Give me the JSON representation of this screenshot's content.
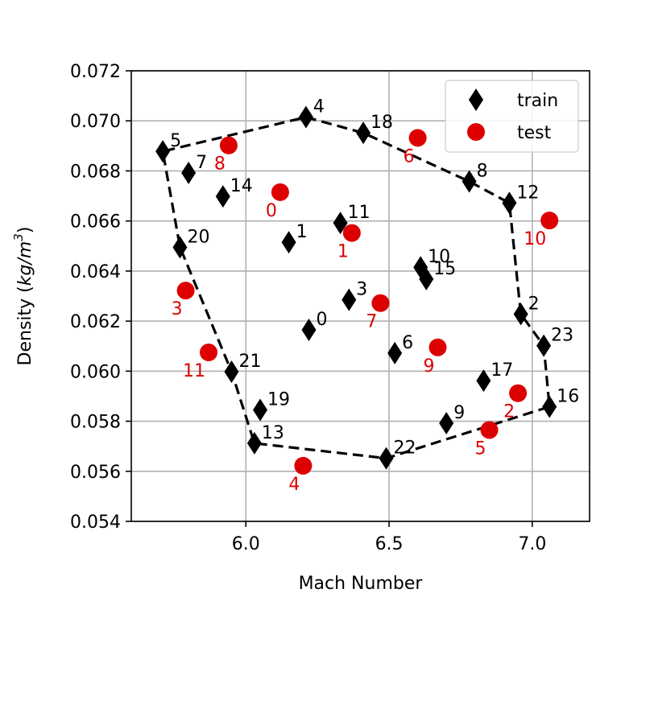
{
  "chart_data": {
    "type": "scatter",
    "xlabel": "Mach Number",
    "ylabel": "Density",
    "ylabel_unit": "kg/m",
    "ylabel_unit_exp": "3",
    "xlim": [
      5.6,
      7.2
    ],
    "ylim": [
      0.054,
      0.072
    ],
    "xticks": [
      6.0,
      6.5,
      7.0
    ],
    "xtick_labels": [
      "6.0",
      "6.5",
      "7.0"
    ],
    "yticks": [
      0.054,
      0.056,
      0.058,
      0.06,
      0.062,
      0.064,
      0.066,
      0.068,
      0.07,
      0.072
    ],
    "ytick_labels": [
      "0.054",
      "0.056",
      "0.058",
      "0.060",
      "0.062",
      "0.064",
      "0.066",
      "0.068",
      "0.070",
      "0.072"
    ],
    "grid": true,
    "legend_position": "top-right",
    "series": [
      {
        "name": "train",
        "marker": "diamond",
        "color": "#000000",
        "points": [
          {
            "label": "0",
            "x": 6.22,
            "y": 0.06165
          },
          {
            "label": "1",
            "x": 6.15,
            "y": 0.06515
          },
          {
            "label": "2",
            "x": 6.96,
            "y": 0.06228
          },
          {
            "label": "3",
            "x": 6.36,
            "y": 0.06285
          },
          {
            "label": "4",
            "x": 6.21,
            "y": 0.07015
          },
          {
            "label": "5",
            "x": 5.71,
            "y": 0.06878
          },
          {
            "label": "6",
            "x": 6.52,
            "y": 0.06072
          },
          {
            "label": "7",
            "x": 5.8,
            "y": 0.06792
          },
          {
            "label": "8",
            "x": 6.78,
            "y": 0.06758
          },
          {
            "label": "9",
            "x": 6.7,
            "y": 0.05792
          },
          {
            "label": "10",
            "x": 6.61,
            "y": 0.06415
          },
          {
            "label": "11",
            "x": 6.33,
            "y": 0.06592
          },
          {
            "label": "12",
            "x": 6.92,
            "y": 0.06672
          },
          {
            "label": "13",
            "x": 6.03,
            "y": 0.05712
          },
          {
            "label": "14",
            "x": 5.92,
            "y": 0.06698
          },
          {
            "label": "15",
            "x": 6.63,
            "y": 0.06368
          },
          {
            "label": "16",
            "x": 7.06,
            "y": 0.05858
          },
          {
            "label": "17",
            "x": 6.83,
            "y": 0.05962
          },
          {
            "label": "18",
            "x": 6.41,
            "y": 0.06952
          },
          {
            "label": "20",
            "x": 5.77,
            "y": 0.06495
          },
          {
            "label": "19",
            "x": 6.05,
            "y": 0.05845
          },
          {
            "label": "21",
            "x": 5.95,
            "y": 0.05998
          },
          {
            "label": "22",
            "x": 6.49,
            "y": 0.05652
          },
          {
            "label": "23",
            "x": 7.04,
            "y": 0.06102
          }
        ]
      },
      {
        "name": "test",
        "marker": "circle",
        "color": "#dd0000",
        "points": [
          {
            "label": "0",
            "x": 6.12,
            "y": 0.06715
          },
          {
            "label": "1",
            "x": 6.37,
            "y": 0.06552
          },
          {
            "label": "2",
            "x": 6.95,
            "y": 0.05912
          },
          {
            "label": "3",
            "x": 5.79,
            "y": 0.06322
          },
          {
            "label": "4",
            "x": 6.2,
            "y": 0.05622
          },
          {
            "label": "5",
            "x": 6.85,
            "y": 0.05765
          },
          {
            "label": "6",
            "x": 6.6,
            "y": 0.06932
          },
          {
            "label": "7",
            "x": 6.47,
            "y": 0.06272
          },
          {
            "label": "8",
            "x": 5.94,
            "y": 0.06902
          },
          {
            "label": "9",
            "x": 6.67,
            "y": 0.06095
          },
          {
            "label": "10",
            "x": 7.06,
            "y": 0.06602
          },
          {
            "label": "11",
            "x": 5.87,
            "y": 0.06075
          }
        ]
      }
    ],
    "hull": {
      "style": "dashed",
      "color": "#000000",
      "vertex_labels": [
        "4",
        "18",
        "8",
        "12",
        "2",
        "23",
        "16",
        "22",
        "13",
        "21",
        "20",
        "5"
      ]
    }
  }
}
